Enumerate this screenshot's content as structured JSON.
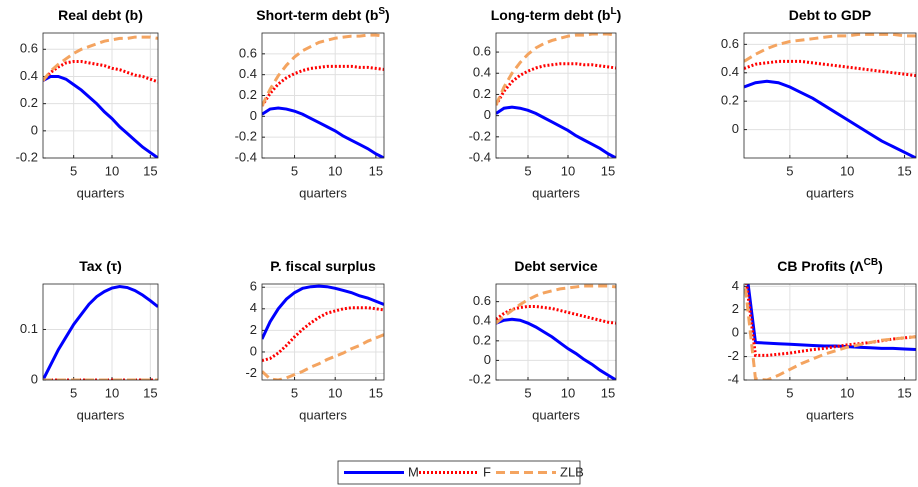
{
  "chart_data": [
    {
      "type": "line",
      "title": "Real debt (b)",
      "xlabel": "quarters",
      "x": [
        1,
        2,
        3,
        4,
        5,
        6,
        7,
        8,
        9,
        10,
        11,
        12,
        13,
        14,
        15,
        16
      ],
      "xlim": [
        1,
        16
      ],
      "xticks": [
        5,
        10,
        15
      ],
      "ylim": [
        -0.2,
        0.72
      ],
      "yticks": [
        -0.2,
        0,
        0.2,
        0.4,
        0.6
      ],
      "grid": true,
      "legend": "bottom",
      "series": [
        {
          "name": "M",
          "color": "#0000ff",
          "dash": "solid",
          "values": [
            0.37,
            0.4,
            0.4,
            0.38,
            0.34,
            0.3,
            0.25,
            0.2,
            0.14,
            0.09,
            0.03,
            -0.02,
            -0.07,
            -0.12,
            -0.16,
            -0.2
          ]
        },
        {
          "name": "F",
          "color": "#ff0000",
          "dash": "dotted",
          "values": [
            0.37,
            0.43,
            0.47,
            0.5,
            0.51,
            0.51,
            0.5,
            0.49,
            0.48,
            0.46,
            0.45,
            0.43,
            0.41,
            0.4,
            0.38,
            0.36
          ]
        },
        {
          "name": "ZLB",
          "color": "#f4a460",
          "dash": "dashed",
          "values": [
            0.37,
            0.44,
            0.49,
            0.53,
            0.57,
            0.6,
            0.62,
            0.64,
            0.66,
            0.67,
            0.68,
            0.68,
            0.69,
            0.69,
            0.69,
            0.68
          ]
        }
      ]
    },
    {
      "type": "line",
      "title": "Short-term debt (b",
      "title_sup": "S",
      "title_end": ")",
      "xlabel": "quarters",
      "x": [
        1,
        2,
        3,
        4,
        5,
        6,
        7,
        8,
        9,
        10,
        11,
        12,
        13,
        14,
        15,
        16
      ],
      "xlim": [
        1,
        16
      ],
      "xticks": [
        5,
        10,
        15
      ],
      "ylim": [
        -0.4,
        0.8
      ],
      "yticks": [
        -0.4,
        -0.2,
        0,
        0.2,
        0.4,
        0.6
      ],
      "grid": true,
      "series": [
        {
          "name": "M",
          "color": "#0000ff",
          "dash": "solid",
          "values": [
            0.02,
            0.07,
            0.08,
            0.07,
            0.05,
            0.02,
            -0.02,
            -0.06,
            -0.1,
            -0.14,
            -0.19,
            -0.23,
            -0.27,
            -0.31,
            -0.36,
            -0.4
          ]
        },
        {
          "name": "F",
          "color": "#ff0000",
          "dash": "dotted",
          "values": [
            0.1,
            0.22,
            0.31,
            0.37,
            0.41,
            0.44,
            0.46,
            0.47,
            0.48,
            0.48,
            0.48,
            0.48,
            0.47,
            0.47,
            0.46,
            0.45
          ]
        },
        {
          "name": "ZLB",
          "color": "#f4a460",
          "dash": "dashed",
          "values": [
            0.1,
            0.26,
            0.39,
            0.49,
            0.57,
            0.63,
            0.67,
            0.71,
            0.73,
            0.75,
            0.76,
            0.77,
            0.77,
            0.78,
            0.78,
            0.77
          ]
        }
      ]
    },
    {
      "type": "line",
      "title": "Long-term debt (b",
      "title_sup": "L",
      "title_end": ")",
      "xlabel": "quarters",
      "x": [
        1,
        2,
        3,
        4,
        5,
        6,
        7,
        8,
        9,
        10,
        11,
        12,
        13,
        14,
        15,
        16
      ],
      "xlim": [
        1,
        16
      ],
      "xticks": [
        5,
        10,
        15
      ],
      "ylim": [
        -0.4,
        0.78
      ],
      "yticks": [
        -0.4,
        -0.2,
        0,
        0.2,
        0.4,
        0.6
      ],
      "grid": true,
      "series": [
        {
          "name": "M",
          "color": "#0000ff",
          "dash": "solid",
          "values": [
            0.02,
            0.07,
            0.08,
            0.07,
            0.05,
            0.02,
            -0.02,
            -0.06,
            -0.1,
            -0.14,
            -0.19,
            -0.23,
            -0.27,
            -0.31,
            -0.36,
            -0.4
          ]
        },
        {
          "name": "F",
          "color": "#ff0000",
          "dash": "dotted",
          "values": [
            0.1,
            0.23,
            0.32,
            0.38,
            0.42,
            0.45,
            0.47,
            0.48,
            0.49,
            0.49,
            0.49,
            0.48,
            0.48,
            0.47,
            0.46,
            0.45
          ]
        },
        {
          "name": "ZLB",
          "color": "#f4a460",
          "dash": "dashed",
          "values": [
            0.1,
            0.27,
            0.4,
            0.5,
            0.58,
            0.64,
            0.68,
            0.71,
            0.73,
            0.75,
            0.76,
            0.76,
            0.77,
            0.77,
            0.77,
            0.76
          ]
        }
      ]
    },
    {
      "type": "line",
      "title": "Debt to GDP",
      "xlabel": "quarters",
      "x": [
        1,
        2,
        3,
        4,
        5,
        6,
        7,
        8,
        9,
        10,
        11,
        12,
        13,
        14,
        15,
        16
      ],
      "xlim": [
        1,
        16
      ],
      "xticks": [
        5,
        10,
        15
      ],
      "ylim": [
        -0.2,
        0.68
      ],
      "yticks": [
        0,
        0.2,
        0.4,
        0.6
      ],
      "grid": true,
      "series": [
        {
          "name": "M",
          "color": "#0000ff",
          "dash": "solid",
          "values": [
            0.3,
            0.33,
            0.34,
            0.33,
            0.3,
            0.26,
            0.22,
            0.17,
            0.12,
            0.07,
            0.02,
            -0.03,
            -0.08,
            -0.12,
            -0.16,
            -0.2
          ]
        },
        {
          "name": "F",
          "color": "#ff0000",
          "dash": "dotted",
          "values": [
            0.43,
            0.46,
            0.47,
            0.48,
            0.48,
            0.48,
            0.47,
            0.46,
            0.45,
            0.44,
            0.43,
            0.42,
            0.41,
            0.4,
            0.39,
            0.38
          ]
        },
        {
          "name": "ZLB",
          "color": "#f4a460",
          "dash": "dashed",
          "values": [
            0.48,
            0.53,
            0.57,
            0.6,
            0.62,
            0.63,
            0.64,
            0.65,
            0.66,
            0.66,
            0.67,
            0.67,
            0.67,
            0.67,
            0.66,
            0.66
          ]
        }
      ]
    },
    {
      "type": "line",
      "title": "Tax (τ)",
      "xlabel": "quarters",
      "x": [
        1,
        2,
        3,
        4,
        5,
        6,
        7,
        8,
        9,
        10,
        11,
        12,
        13,
        14,
        15,
        16
      ],
      "xlim": [
        1,
        16
      ],
      "xticks": [
        5,
        10,
        15
      ],
      "ylim": [
        0,
        0.19
      ],
      "yticks": [
        0,
        0.1
      ],
      "grid": true,
      "series": [
        {
          "name": "M",
          "color": "#0000ff",
          "dash": "solid",
          "values": [
            0,
            0.03,
            0.06,
            0.085,
            0.11,
            0.13,
            0.15,
            0.165,
            0.175,
            0.182,
            0.185,
            0.183,
            0.177,
            0.168,
            0.157,
            0.145
          ]
        },
        {
          "name": "F",
          "color": "#ff0000",
          "dash": "dotted",
          "values": [
            0,
            0,
            0,
            0,
            0,
            0,
            0,
            0,
            0,
            0,
            0,
            0,
            0,
            0,
            0,
            0
          ]
        },
        {
          "name": "ZLB",
          "color": "#f4a460",
          "dash": "dashed",
          "values": [
            0,
            0,
            0,
            0,
            0,
            0,
            0,
            0,
            0,
            0,
            0,
            0,
            0,
            0,
            0,
            0
          ]
        }
      ]
    },
    {
      "type": "line",
      "title": "P. fiscal surplus",
      "xlabel": "quarters",
      "x": [
        1,
        2,
        3,
        4,
        5,
        6,
        7,
        8,
        9,
        10,
        11,
        12,
        13,
        14,
        15,
        16
      ],
      "xlim": [
        1,
        16
      ],
      "xticks": [
        5,
        10,
        15
      ],
      "ylim": [
        -2.6,
        6.3
      ],
      "yticks": [
        -2,
        0,
        2,
        4,
        6
      ],
      "grid": true,
      "series": [
        {
          "name": "M",
          "color": "#0000ff",
          "dash": "solid",
          "values": [
            1.2,
            2.8,
            4.0,
            4.9,
            5.5,
            5.9,
            6.05,
            6.1,
            6.05,
            5.9,
            5.7,
            5.5,
            5.2,
            5.0,
            4.7,
            4.4
          ]
        },
        {
          "name": "F",
          "color": "#ff0000",
          "dash": "dotted",
          "values": [
            -0.8,
            -0.6,
            -0.1,
            0.6,
            1.4,
            2.1,
            2.7,
            3.2,
            3.6,
            3.8,
            4.0,
            4.1,
            4.1,
            4.1,
            4.0,
            3.9
          ]
        },
        {
          "name": "ZLB",
          "color": "#f4a460",
          "dash": "dashed",
          "values": [
            -1.8,
            -2.5,
            -2.6,
            -2.4,
            -2.1,
            -1.8,
            -1.4,
            -1.1,
            -0.7,
            -0.4,
            -0.1,
            0.3,
            0.6,
            1.0,
            1.3,
            1.6
          ]
        }
      ]
    },
    {
      "type": "line",
      "title": "Debt service",
      "xlabel": "quarters",
      "x": [
        1,
        2,
        3,
        4,
        5,
        6,
        7,
        8,
        9,
        10,
        11,
        12,
        13,
        14,
        15,
        16
      ],
      "xlim": [
        1,
        16
      ],
      "xticks": [
        5,
        10,
        15
      ],
      "ylim": [
        -0.2,
        0.78
      ],
      "yticks": [
        -0.2,
        0,
        0.2,
        0.4,
        0.6
      ],
      "grid": true,
      "series": [
        {
          "name": "M",
          "color": "#0000ff",
          "dash": "solid",
          "values": [
            0.38,
            0.41,
            0.42,
            0.41,
            0.38,
            0.34,
            0.29,
            0.24,
            0.18,
            0.12,
            0.07,
            0.01,
            -0.04,
            -0.1,
            -0.15,
            -0.2
          ]
        },
        {
          "name": "F",
          "color": "#ff0000",
          "dash": "dotted",
          "values": [
            0.42,
            0.48,
            0.52,
            0.54,
            0.55,
            0.55,
            0.54,
            0.53,
            0.51,
            0.49,
            0.47,
            0.45,
            0.43,
            0.41,
            0.39,
            0.38
          ]
        },
        {
          "name": "ZLB",
          "color": "#f4a460",
          "dash": "dashed",
          "values": [
            0.38,
            0.45,
            0.51,
            0.57,
            0.62,
            0.66,
            0.69,
            0.71,
            0.73,
            0.74,
            0.75,
            0.76,
            0.76,
            0.76,
            0.76,
            0.75
          ]
        }
      ]
    },
    {
      "type": "line",
      "title": "CB Profits (Λ",
      "title_sup": "CB",
      "title_end": ")",
      "xlabel": "quarters",
      "x": [
        1,
        2,
        3,
        4,
        5,
        6,
        7,
        8,
        9,
        10,
        11,
        12,
        13,
        14,
        15,
        16
      ],
      "xlim": [
        1,
        16
      ],
      "xticks": [
        5,
        10,
        15
      ],
      "ylim": [
        -4,
        4.2
      ],
      "yticks": [
        -4,
        -2,
        0,
        2,
        4
      ],
      "grid": true,
      "series": [
        {
          "name": "M",
          "color": "#0000ff",
          "dash": "solid",
          "values": [
            7,
            -0.8,
            -0.85,
            -0.9,
            -0.95,
            -1.0,
            -1.05,
            -1.1,
            -1.1,
            -1.15,
            -1.2,
            -1.25,
            -1.3,
            -1.3,
            -1.35,
            -1.4
          ]
        },
        {
          "name": "F",
          "color": "#ff0000",
          "dash": "dotted",
          "values": [
            6,
            -1.9,
            -1.9,
            -1.8,
            -1.7,
            -1.55,
            -1.4,
            -1.3,
            -1.15,
            -1.0,
            -0.9,
            -0.8,
            -0.65,
            -0.5,
            -0.4,
            -0.3
          ]
        },
        {
          "name": "ZLB",
          "color": "#f4a460",
          "dash": "dashed",
          "values": [
            5,
            -3.9,
            -4.0,
            -3.6,
            -3.1,
            -2.6,
            -2.2,
            -1.8,
            -1.5,
            -1.2,
            -1.0,
            -0.8,
            -0.6,
            -0.5,
            -0.4,
            -0.3
          ]
        }
      ]
    }
  ]
}
